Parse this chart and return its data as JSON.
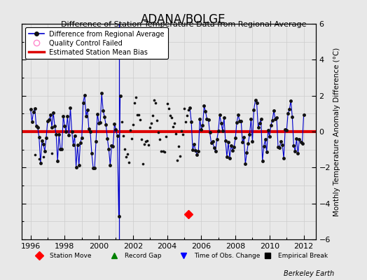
{
  "title": "ADANA/BOLGE",
  "subtitle": "Difference of Station Temperature Data from Regional Average",
  "ylabel": "Monthly Temperature Anomaly Difference (°C)",
  "xlim": [
    1995.5,
    2012.7
  ],
  "ylim": [
    -6,
    6
  ],
  "yticks": [
    -6,
    -4,
    -2,
    0,
    2,
    4,
    6
  ],
  "xticks": [
    1996,
    1998,
    2000,
    2002,
    2004,
    2006,
    2008,
    2010,
    2012
  ],
  "bias_value": 0.0,
  "vertical_line_blue": 2001.17,
  "vertical_line_gray": 2005.25,
  "station_move_x": 2005.25,
  "station_move_y": -4.6,
  "bg_color": "#e8e8e8",
  "plot_bg_color": "#e8e8e8",
  "line_color": "#0000cc",
  "bias_color": "#dd0000",
  "marker_color": "#111111",
  "footer": "Berkeley Earth",
  "title_fontsize": 12,
  "subtitle_fontsize": 8,
  "legend_fontsize": 7,
  "tick_fontsize": 8,
  "ylabel_fontsize": 7.5
}
